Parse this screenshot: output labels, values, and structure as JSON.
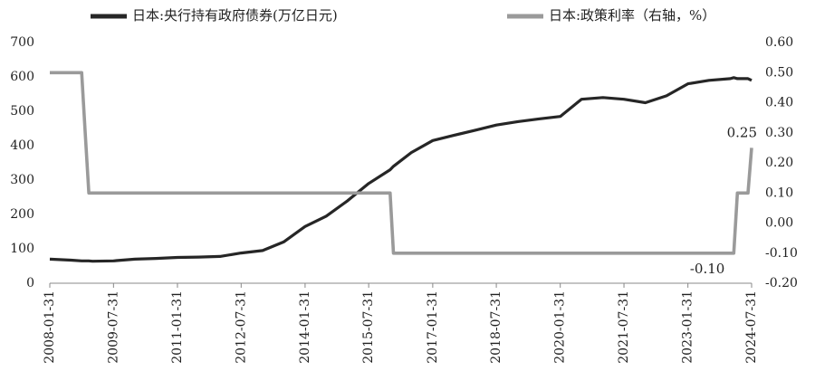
{
  "chart_data": {
    "type": "line",
    "x": [
      "2008-01-31",
      "2008-07-31",
      "2008-10-31",
      "2008-11-30",
      "2008-12-31",
      "2009-01-31",
      "2009-07-31",
      "2010-01-31",
      "2010-07-31",
      "2011-01-31",
      "2011-07-31",
      "2012-01-31",
      "2012-07-31",
      "2013-01-31",
      "2013-07-31",
      "2014-01-31",
      "2014-07-31",
      "2015-01-31",
      "2015-07-31",
      "2016-01-31",
      "2016-02-29",
      "2016-07-31",
      "2017-01-31",
      "2017-07-31",
      "2018-01-31",
      "2018-07-31",
      "2019-01-31",
      "2019-07-31",
      "2020-01-31",
      "2020-07-31",
      "2021-01-31",
      "2021-07-31",
      "2022-01-31",
      "2022-07-31",
      "2023-01-31",
      "2023-07-31",
      "2024-01-31",
      "2024-02-29",
      "2024-03-31",
      "2024-06-30",
      "2024-07-31"
    ],
    "series": [
      {
        "name": "日本:央行持有政府债券(万亿日元)",
        "color": "#262626",
        "values": [
          70,
          67,
          65,
          65,
          65,
          64,
          65,
          70,
          72,
          75,
          76,
          78,
          88,
          95,
          120,
          165,
          195,
          240,
          290,
          330,
          340,
          380,
          415,
          430,
          445,
          460,
          470,
          478,
          485,
          535,
          540,
          535,
          525,
          545,
          580,
          590,
          595,
          598,
          595,
          595,
          590
        ]
      },
      {
        "name": "日本:政策利率（右轴，%）",
        "color": "#9a9a9a",
        "axis": "y2",
        "values": [
          0.5,
          0.5,
          0.5,
          0.3,
          0.1,
          0.1,
          0.1,
          0.1,
          0.1,
          0.1,
          0.1,
          0.1,
          0.1,
          0.1,
          0.1,
          0.1,
          0.1,
          0.1,
          0.1,
          0.1,
          -0.1,
          -0.1,
          -0.1,
          -0.1,
          -0.1,
          -0.1,
          -0.1,
          -0.1,
          -0.1,
          -0.1,
          -0.1,
          -0.1,
          -0.1,
          -0.1,
          -0.1,
          -0.1,
          -0.1,
          -0.1,
          0.1,
          0.1,
          0.25
        ],
        "value_labels": [
          null,
          null,
          null,
          null,
          null,
          null,
          null,
          null,
          null,
          null,
          null,
          null,
          null,
          null,
          null,
          null,
          null,
          null,
          null,
          null,
          null,
          null,
          null,
          null,
          null,
          null,
          null,
          null,
          null,
          null,
          null,
          null,
          null,
          null,
          null,
          null,
          null,
          "-0.10",
          null,
          null,
          "0.25"
        ]
      }
    ],
    "xlim": [
      "2008-01-31",
      "2024-07-31"
    ],
    "xticks": [
      "2008-01-31",
      "2009-07-31",
      "2011-01-31",
      "2012-07-31",
      "2014-01-31",
      "2015-07-31",
      "2017-01-31",
      "2018-07-31",
      "2020-01-31",
      "2021-07-31",
      "2023-01-31",
      "2024-07-31"
    ],
    "ylim": [
      0,
      700
    ],
    "yticks": [
      0,
      100,
      200,
      300,
      400,
      500,
      600,
      700
    ],
    "y2lim": [
      -0.2,
      0.6
    ],
    "y2ticks": [
      {
        "value": -0.2,
        "label": "-0.20"
      },
      {
        "value": -0.1,
        "label": "-0.10"
      },
      {
        "value": 0,
        "label": "0.00"
      },
      {
        "value": 0.1,
        "label": "0.10"
      },
      {
        "value": 0.2,
        "label": "0.20"
      },
      {
        "value": 0.3,
        "label": "0.30"
      },
      {
        "value": 0.4,
        "label": "0.40"
      },
      {
        "value": 0.5,
        "label": "0.50"
      },
      {
        "value": 0.6,
        "label": "0.60"
      }
    ],
    "grid": false
  }
}
